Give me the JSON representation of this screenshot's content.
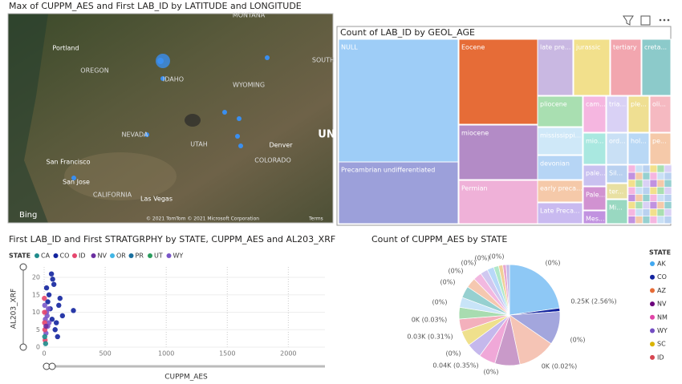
{
  "map": {
    "title": "Max of CUPPM_AES and First LAB_ID by LATITUDE and LONGITUDE",
    "places": [
      "MONTANA",
      "Portland",
      "OREGON",
      "IDAHO",
      "WYOMING",
      "SOUTH",
      "NEVADA",
      "UTAH",
      "Denver",
      "UN",
      "COLORADO",
      "San Francisco",
      "San Jose",
      "CALIFORNIA",
      "Las Vegas"
    ],
    "logo": "Bing",
    "attribution": "© 2021 TomTom © 2021 Microsoft Corporation",
    "terms": "Terms"
  },
  "treemap": {
    "title": "Count of LAB_ID by GEOL_AGE",
    "cells": [
      {
        "label": "NULL",
        "color": "#9ecdf7"
      },
      {
        "label": "Precambrian undifferentiated",
        "color": "#9ca0da"
      },
      {
        "label": "Eocene",
        "color": "#e66c37"
      },
      {
        "label": "miocene",
        "color": "#b38bc6"
      },
      {
        "label": "Permian",
        "color": "#efb1d8"
      },
      {
        "label": "late pre...",
        "color": "#c9b8e2"
      },
      {
        "label": "jurassic",
        "color": "#f2e08c"
      },
      {
        "label": "tertiary",
        "color": "#f2a6af"
      },
      {
        "label": "creta...",
        "color": "#8ccaca"
      },
      {
        "label": "pliocene",
        "color": "#a9dfb1"
      },
      {
        "label": "mississippi...",
        "color": "#cfe8f8"
      },
      {
        "label": "devonian",
        "color": "#b6d5f5"
      },
      {
        "label": "early preca...",
        "color": "#f5c9a9"
      },
      {
        "label": "Late Preca...",
        "color": "#c9baf0"
      },
      {
        "label": "cam...",
        "color": "#f5b6e0"
      },
      {
        "label": "tria...",
        "color": "#d9d1f5"
      },
      {
        "label": "ple...",
        "color": "#efdf92"
      },
      {
        "label": "oli...",
        "color": "#f5b9c1"
      },
      {
        "label": "mio...",
        "color": "#a9e8e0"
      },
      {
        "label": "ord...",
        "color": "#c9e0f5"
      },
      {
        "label": "hol...",
        "color": "#b9d8f5"
      },
      {
        "label": "pe...",
        "color": "#f5c9a9"
      },
      {
        "label": "pale...",
        "color": "#c9c1f0"
      },
      {
        "label": "Sil...",
        "color": "#b9d1f0"
      },
      {
        "label": "Pale...",
        "color": "#d192d1"
      },
      {
        "label": "ter...",
        "color": "#e8e0a2"
      },
      {
        "label": "Mes...",
        "color": "#c192e0"
      },
      {
        "label": "Mi...",
        "color": "#99d8c1"
      }
    ]
  },
  "scatter": {
    "title": "First LAB_ID and First STRATGRPHY by STATE, CUPPM_AES and AL203_XRF",
    "legend_title": "STATE",
    "legend": [
      {
        "name": "CA",
        "color": "#1f8b8b"
      },
      {
        "name": "CO",
        "color": "#12239e"
      },
      {
        "name": "ID",
        "color": "#e6466e"
      },
      {
        "name": "NV",
        "color": "#6b2fa0"
      },
      {
        "name": "OR",
        "color": "#41b6e6"
      },
      {
        "name": "PR",
        "color": "#1a6f9e"
      },
      {
        "name": "UT",
        "color": "#2a9d5e"
      },
      {
        "name": "WY",
        "color": "#7a56c9"
      }
    ],
    "x_label": "CUPPM_AES",
    "y_label": "AL203_XRF",
    "xlim": [
      0,
      2300
    ],
    "ylim": [
      0,
      23
    ],
    "xticks": [
      0,
      500,
      1000,
      1500,
      2000
    ],
    "yticks": [
      0,
      5,
      10,
      15,
      20
    ],
    "series": [
      {
        "name": "CO",
        "color": "#12239e",
        "x": [
          60,
          80,
          120,
          150,
          240,
          40,
          100,
          70,
          30,
          90,
          130,
          50,
          20,
          110,
          65
        ],
        "y": [
          21,
          18,
          12,
          9,
          10.5,
          15,
          7,
          19.5,
          13,
          5,
          14,
          11,
          17,
          3,
          8
        ]
      },
      {
        "name": "WY",
        "color": "#7a56c9",
        "x": [
          10,
          20,
          30,
          5,
          15,
          25,
          35,
          40
        ],
        "y": [
          8,
          10,
          6,
          12,
          4,
          9,
          11,
          7
        ]
      },
      {
        "name": "ID",
        "color": "#e6466e",
        "x": [
          3,
          6,
          2,
          8,
          4
        ],
        "y": [
          10,
          5,
          14,
          2,
          7
        ]
      },
      {
        "name": "CA",
        "color": "#1f8b8b",
        "x": [
          5,
          12
        ],
        "y": [
          3,
          1
        ]
      },
      {
        "name": "NV",
        "color": "#6b2fa0",
        "x": [
          15
        ],
        "y": [
          6
        ]
      }
    ]
  },
  "pie": {
    "title": "Count of CUPPM_AES by STATE",
    "legend_title": "STATE",
    "legend": [
      {
        "name": "AK",
        "color": "#41a8f0"
      },
      {
        "name": "CO",
        "color": "#12239e"
      },
      {
        "name": "AZ",
        "color": "#e66c37"
      },
      {
        "name": "NV",
        "color": "#6b007b"
      },
      {
        "name": "NM",
        "color": "#e044a7"
      },
      {
        "name": "WY",
        "color": "#744ec2"
      },
      {
        "name": "SC",
        "color": "#d9b300"
      },
      {
        "name": "ID",
        "color": "#d64550"
      }
    ],
    "slices": [
      {
        "color": "#8ec8f5",
        "value": 85
      },
      {
        "color": "#12239e",
        "value": 4
      },
      {
        "color": "#a3a6dd",
        "value": 40
      },
      {
        "color": "#f5c4b5",
        "value": 45
      },
      {
        "color": "#c99ac9",
        "value": 30
      },
      {
        "color": "#f0a8d8",
        "value": 20
      },
      {
        "color": "#c5b8ec",
        "value": 18
      },
      {
        "color": "#efe08c",
        "value": 18
      },
      {
        "color": "#f3b0bc",
        "value": 15
      },
      {
        "color": "#a8dcb0",
        "value": 14
      },
      {
        "color": "#c8e4f8",
        "value": 12
      },
      {
        "color": "#96d0d0",
        "value": 14
      },
      {
        "color": "#f5c8b0",
        "value": 12
      },
      {
        "color": "#f2b8e0",
        "value": 10
      },
      {
        "color": "#d0c8f0",
        "value": 9
      },
      {
        "color": "#b8d8f8",
        "value": 8
      },
      {
        "color": "#b0e8c8",
        "value": 6
      },
      {
        "color": "#f0d098",
        "value": 5
      },
      {
        "color": "#e8a8d0",
        "value": 4
      },
      {
        "color": "#c0b8e8",
        "value": 4
      }
    ],
    "labels": [
      "(0%)",
      "0.25K (2.56%)",
      "(0%)",
      "0K (0.02%)",
      "(0%)",
      "0.04K (0.35%)",
      "(0%)",
      "0.03K (0.31%)",
      "0K (0.03%)",
      "(0%)",
      "(0%)",
      "(0%)",
      "(0%)",
      "(0%)",
      "(0%)"
    ]
  }
}
